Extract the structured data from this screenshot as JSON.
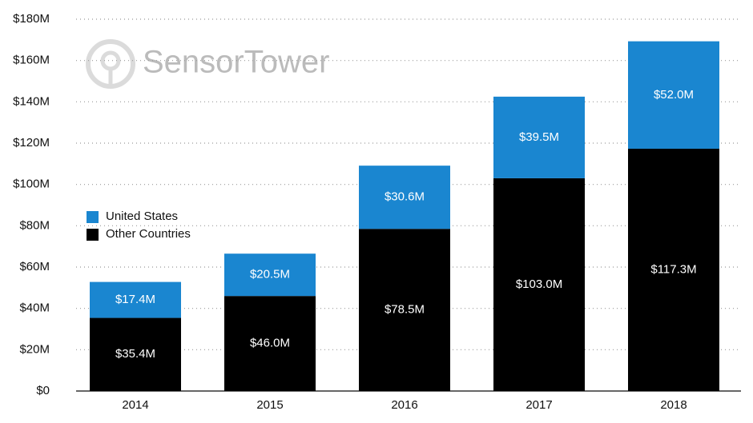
{
  "chart_data": {
    "type": "stacked-bar",
    "watermark": "SensorTower",
    "categories": [
      "2014",
      "2015",
      "2016",
      "2017",
      "2018"
    ],
    "series": [
      {
        "name": "Other Countries",
        "color": "#000000",
        "values": [
          35.4,
          46.0,
          78.5,
          103.0,
          117.3
        ],
        "value_labels": [
          "$35.4M",
          "$46.0M",
          "$78.5M",
          "$103.0M",
          "$117.3M"
        ]
      },
      {
        "name": "United States",
        "color": "#1a86d0",
        "values": [
          17.4,
          20.5,
          30.6,
          39.5,
          52.0
        ],
        "value_labels": [
          "$17.4M",
          "$20.5M",
          "$30.6M",
          "$39.5M",
          "$52.0M"
        ]
      }
    ],
    "ylim": [
      0,
      180
    ],
    "yticks": [
      {
        "value": 0,
        "label": "$0"
      },
      {
        "value": 20,
        "label": "$20M"
      },
      {
        "value": 40,
        "label": "$40M"
      },
      {
        "value": 60,
        "label": "$60M"
      },
      {
        "value": 80,
        "label": "$80M"
      },
      {
        "value": 100,
        "label": "$100M"
      },
      {
        "value": 120,
        "label": "$120M"
      },
      {
        "value": 140,
        "label": "$140M"
      },
      {
        "value": 160,
        "label": "$160M"
      },
      {
        "value": 180,
        "label": "$180M"
      }
    ],
    "grid": true,
    "legend": "left"
  }
}
